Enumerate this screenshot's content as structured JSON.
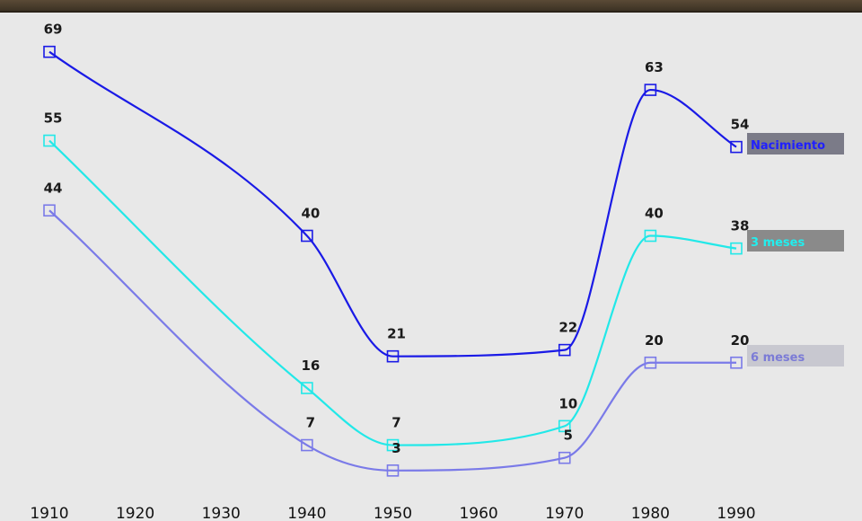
{
  "window": {
    "title": ""
  },
  "chart_data": {
    "type": "line",
    "title": "",
    "xlabel": "",
    "ylabel": "",
    "x": [
      1910,
      1920,
      1930,
      1940,
      1950,
      1960,
      1970,
      1980,
      1990
    ],
    "x_tick_labels": [
      "1910",
      "1920",
      "1930",
      "1940",
      "1950",
      "1960",
      "1970",
      "1980",
      "1990"
    ],
    "grid": false,
    "legend_placement": "right",
    "series": [
      {
        "name": "Nacimiento",
        "color": "#1a1ae6",
        "legend_bg": "#7b7b88",
        "legend_color": "#2020ff",
        "marker": "square",
        "points": [
          {
            "x": 1910,
            "y": 69,
            "label": "69"
          },
          {
            "x": 1940,
            "y": 40,
            "label": "40"
          },
          {
            "x": 1950,
            "y": 21,
            "label": "21"
          },
          {
            "x": 1970,
            "y": 22,
            "label": "22"
          },
          {
            "x": 1980,
            "y": 63,
            "label": "63"
          },
          {
            "x": 1990,
            "y": 54,
            "label": "54"
          }
        ]
      },
      {
        "name": "3 meses",
        "color": "#22e8e8",
        "legend_bg": "#8a8a8a",
        "legend_color": "#22eeee",
        "marker": "square",
        "points": [
          {
            "x": 1910,
            "y": 55,
            "label": "55"
          },
          {
            "x": 1940,
            "y": 16,
            "label": "16"
          },
          {
            "x": 1950,
            "y": 7,
            "label": "7"
          },
          {
            "x": 1970,
            "y": 10,
            "label": "10"
          },
          {
            "x": 1980,
            "y": 40,
            "label": "40"
          },
          {
            "x": 1990,
            "y": 38,
            "label": "38"
          }
        ]
      },
      {
        "name": "6 meses",
        "color": "#7a7ae8",
        "legend_bg": "#c8c8d0",
        "legend_color": "#7b7bd6",
        "marker": "square",
        "points": [
          {
            "x": 1910,
            "y": 44,
            "label": "44"
          },
          {
            "x": 1940,
            "y": 7,
            "label": "7"
          },
          {
            "x": 1950,
            "y": 3,
            "label": "3"
          },
          {
            "x": 1970,
            "y": 5,
            "label": "5"
          },
          {
            "x": 1980,
            "y": 20,
            "label": "20"
          },
          {
            "x": 1990,
            "y": 20,
            "label": "20"
          }
        ]
      }
    ]
  }
}
